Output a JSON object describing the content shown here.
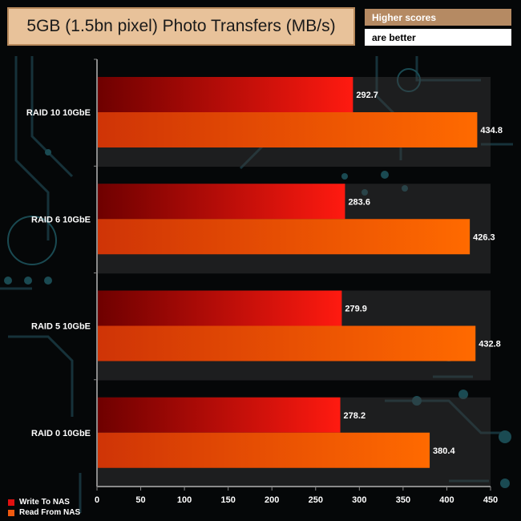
{
  "header": {
    "title": "5GB (1.5bn pixel) Photo Transfers (MB/s)",
    "hint_line1": "Higher scores",
    "hint_line2": "are better"
  },
  "colors": {
    "write_dark": "#7a0000",
    "write_light": "#ff1a10",
    "read_dark": "#d83a06",
    "read_light": "#ff6a00",
    "title_bg": "#e8c29a",
    "hint_bg": "#b58a63"
  },
  "chart_data": {
    "type": "bar",
    "orientation": "horizontal",
    "categories": [
      "RAID 10 10GbE",
      "RAID 6 10GbE",
      "RAID 5 10GbE",
      "RAID 0 10GbE"
    ],
    "series": [
      {
        "name": "Write To NAS",
        "values": [
          292.7,
          283.6,
          279.9,
          278.2
        ]
      },
      {
        "name": "Read From NAS",
        "values": [
          434.8,
          426.3,
          432.8,
          380.4
        ]
      }
    ],
    "xlim": [
      0,
      450
    ],
    "xticks": [
      0,
      50,
      100,
      150,
      200,
      250,
      300,
      350,
      400,
      450
    ],
    "legend_position": "bottom-left",
    "grid": false
  },
  "legend": {
    "items": [
      {
        "label": "Write To NAS",
        "color": "#e01010"
      },
      {
        "label": "Read From NAS",
        "color": "#f05a10"
      }
    ]
  }
}
